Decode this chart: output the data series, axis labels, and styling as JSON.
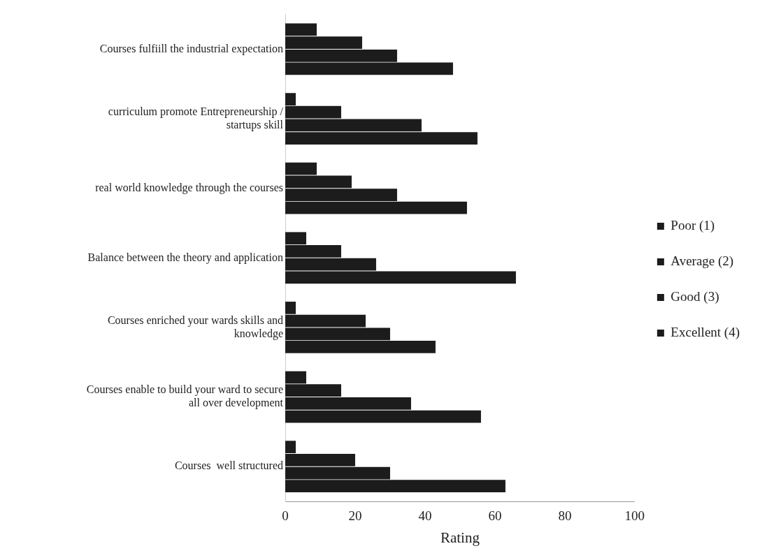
{
  "chart_data": {
    "type": "bar",
    "orientation": "horizontal",
    "xlabel": "Rating",
    "categories": [
      "Courses fulfiill the industrial expectation",
      "curriculum promote Entrepreneurship / startups skill",
      "real world knowledge through the courses",
      "Balance between the theory and application",
      "Courses enriched your wards skills and knowledge",
      "Courses enable to build your ward to secure all over development",
      "Courses  well structured"
    ],
    "series": [
      {
        "name": "Poor (1)",
        "color": "#1c1c1c",
        "values": [
          9,
          3,
          9,
          6,
          3,
          6,
          3
        ]
      },
      {
        "name": "Average (2)",
        "color": "#1c1c1c",
        "values": [
          22,
          16,
          19,
          16,
          23,
          16,
          20
        ]
      },
      {
        "name": "Good (3)",
        "color": "#1c1c1c",
        "values": [
          32,
          39,
          32,
          26,
          30,
          36,
          30
        ]
      },
      {
        "name": "Excellent (4)",
        "color": "#1c1c1c",
        "values": [
          48,
          55,
          52,
          66,
          43,
          56,
          63
        ]
      }
    ],
    "xlim": [
      0,
      100
    ],
    "xticks": [
      0,
      20,
      40,
      60,
      80,
      100
    ],
    "grid": false,
    "legend": "right"
  }
}
